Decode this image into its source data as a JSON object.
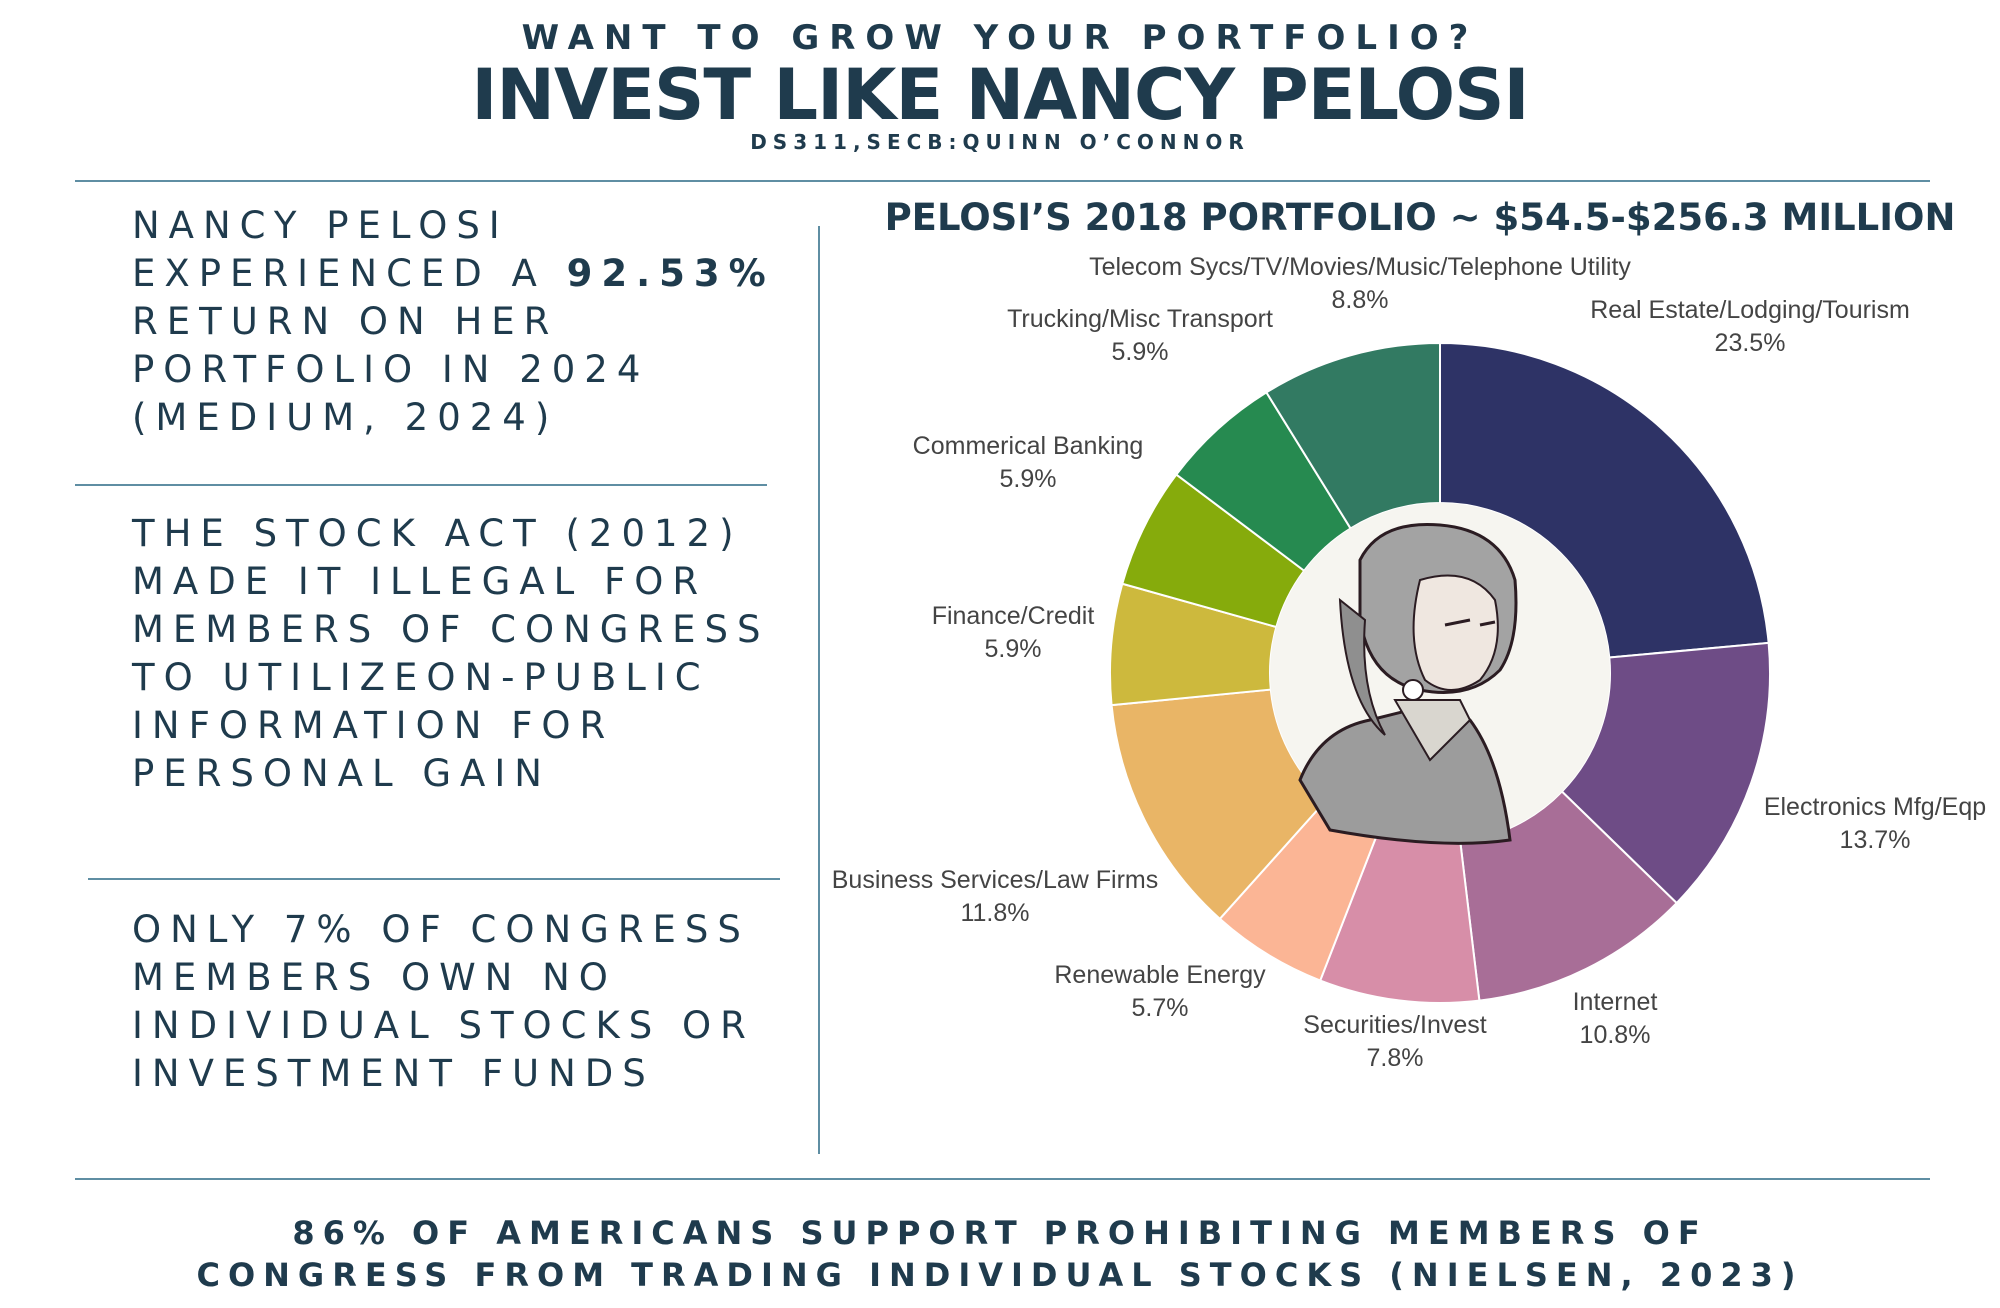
{
  "header": {
    "kicker": "WANT TO GROW YOUR PORTFOLIO?",
    "title": "INVEST LIKE NANCY PELOSI",
    "byline": "DS311,SECB:QUINN O’CONNOR"
  },
  "facts": {
    "fact1_pre": "NANCY PELOSI EXPERIENCED A",
    "fact1_highlight": "92.53%",
    "fact1_post": "RETURN ON HER PORTFOLIO IN 2024 (MEDIUM, 2024)",
    "fact2": "THE STOCK ACT (2012) MADE IT ILLEGAL FOR MEMBERS OF CONGRESS TO UTILIZEON-PUBLIC INFORMATION FOR PERSONAL GAIN",
    "fact3": "ONLY 7% OF CONGRESS MEMBERS OWN NO INDIVIDUAL STOCKS OR INVESTMENT FUNDS"
  },
  "footer": {
    "line1": "86% OF AMERICANS SUPPORT PROHIBITING MEMBERS OF",
    "line2": "CONGRESS FROM TRADING INDIVIDUAL STOCKS (NIELSEN, 2023)"
  },
  "colors": {
    "accent": "#1f3b4d",
    "rule": "#5f8ea3"
  },
  "chart_data": {
    "type": "pie",
    "donut": true,
    "title": "PELOSI’S 2018 PORTFOLIO ~ $54.5-$256.3 MILLION",
    "center_image": "portrait-illustration",
    "slices": [
      {
        "label": "Real Estate/Lodging/Tourism",
        "value": 23.5,
        "display": "23.5%",
        "color": "#2e3366"
      },
      {
        "label": "Electronics Mfg/Eqp",
        "value": 13.7,
        "display": "13.7%",
        "color": "#6e4c86"
      },
      {
        "label": "Internet",
        "value": 10.8,
        "display": "10.8%",
        "color": "#a86e97"
      },
      {
        "label": "Securities/Invest",
        "value": 7.8,
        "display": "7.8%",
        "color": "#d78ea8"
      },
      {
        "label": "Renewable Energy",
        "value": 5.7,
        "display": "5.7%",
        "color": "#fbb595"
      },
      {
        "label": "Business Services/Law Firms",
        "value": 11.8,
        "display": "11.8%",
        "color": "#e9b566"
      },
      {
        "label": "Finance/Credit",
        "value": 5.9,
        "display": "5.9%",
        "color": "#cdb93d"
      },
      {
        "label": "Commerical Banking",
        "value": 5.9,
        "display": "5.9%",
        "color": "#86ab0c"
      },
      {
        "label": "Trucking/Misc Transport",
        "value": 5.9,
        "display": "5.9%",
        "color": "#268a50"
      },
      {
        "label": "Telecom Sycs/TV/Movies/Music/Telephone Utility",
        "value": 8.8,
        "display": "8.8%",
        "color": "#327a62"
      }
    ]
  }
}
